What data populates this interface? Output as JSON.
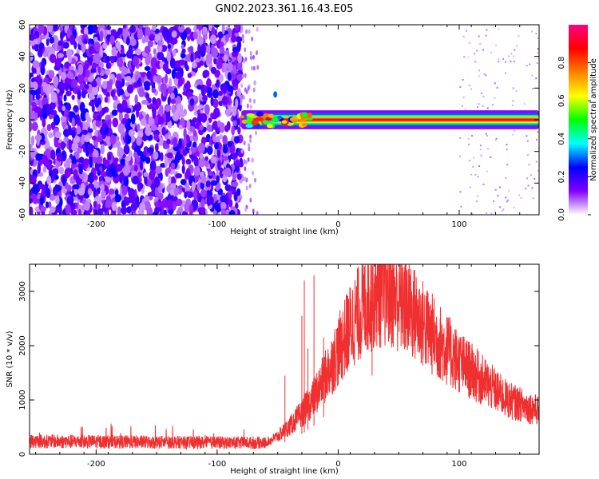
{
  "figure": {
    "title": "GN02.2023.361.16.43.E05"
  },
  "chart_data": [
    {
      "type": "heatmap",
      "xlabel": "Height of straight line (km)",
      "ylabel": "Frequency (Hz)",
      "xlim": [
        -255,
        166
      ],
      "ylim": [
        -60,
        60
      ],
      "xticks": [
        -200,
        -100,
        0,
        100
      ],
      "yticks": [
        -60,
        -40,
        -20,
        0,
        20,
        40,
        60
      ],
      "colorbar": {
        "label": "Normalized spectral amplitude",
        "range": [
          0,
          1
        ],
        "ticks": [
          0.0,
          0.2,
          0.4,
          0.6,
          0.8
        ],
        "colors": [
          "#ffffff",
          "#8000ff",
          "#0000ff",
          "#00ffff",
          "#00ff00",
          "#ffff00",
          "#ff8000",
          "#ff0000",
          "#ff0080"
        ]
      },
      "noise_region_x": [
        -255,
        -80
      ],
      "signal_band": {
        "x_start": -80,
        "x_end": 166,
        "center_frequency": 0,
        "half_width": 2,
        "peak_amplitude": 0.95
      },
      "grid": false
    },
    {
      "type": "line",
      "xlabel": "Height of straight line (km)",
      "ylabel": "SNR (10 * v/v)",
      "xlim": [
        -255,
        166
      ],
      "ylim": [
        0,
        3500
      ],
      "xticks": [
        -200,
        -100,
        0,
        100
      ],
      "yticks": [
        0,
        1000,
        2000,
        3000
      ],
      "color": "#f03030",
      "envelope": {
        "x": [
          -255,
          -200,
          -100,
          -60,
          -50,
          -40,
          -30,
          -20,
          -10,
          0,
          10,
          20,
          30,
          40,
          50,
          60,
          80,
          100,
          120,
          140,
          166
        ],
        "y": [
          240,
          230,
          215,
          210,
          330,
          520,
          750,
          1050,
          1450,
          1900,
          2350,
          2700,
          2950,
          3000,
          2850,
          2650,
          2150,
          1700,
          1350,
          1000,
          800
        ]
      },
      "spikes": [
        {
          "x": -44,
          "y": 1450
        },
        {
          "x": -30,
          "y": 2550
        },
        {
          "x": -28,
          "y": 3200
        },
        {
          "x": -25,
          "y": 1950
        },
        {
          "x": -20,
          "y": 3300
        },
        {
          "x": -12,
          "y": 2150
        },
        {
          "x": 28,
          "y": 3450
        }
      ],
      "grid": false
    }
  ]
}
